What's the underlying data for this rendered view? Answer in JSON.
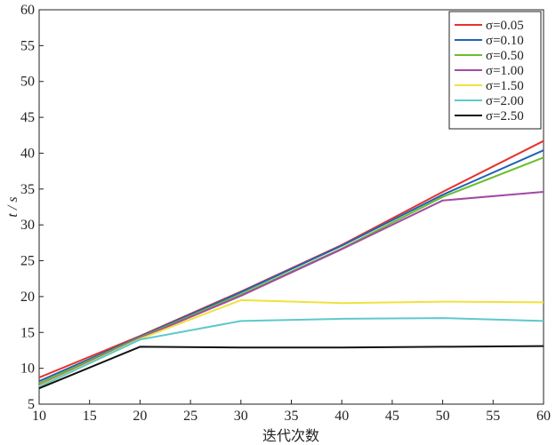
{
  "chart_data": {
    "type": "line",
    "title": "",
    "xlabel": "迭代次数",
    "ylabel": "t / s",
    "xlim": [
      10,
      60
    ],
    "ylim": [
      5,
      60
    ],
    "xticks": [
      10,
      15,
      20,
      25,
      30,
      35,
      40,
      45,
      50,
      55,
      60
    ],
    "yticks": [
      5,
      10,
      15,
      20,
      25,
      30,
      35,
      40,
      45,
      50,
      55,
      60
    ],
    "grid": false,
    "legend_position": "top-right",
    "x": [
      10,
      20,
      30,
      40,
      50,
      60
    ],
    "series": [
      {
        "name": "σ=0.05",
        "color": "#e8312f",
        "values": [
          8.7,
          14.5,
          20.7,
          27.2,
          34.6,
          41.7
        ]
      },
      {
        "name": "σ=0.10",
        "color": "#1f63b4",
        "values": [
          8.2,
          14.4,
          20.6,
          27.1,
          34.2,
          40.4
        ]
      },
      {
        "name": "σ=0.50",
        "color": "#6abd2f",
        "values": [
          7.9,
          14.3,
          20.3,
          26.7,
          33.9,
          39.4
        ]
      },
      {
        "name": "σ=1.00",
        "color": "#a349a4",
        "values": [
          7.6,
          14.2,
          20.1,
          26.6,
          33.4,
          34.6
        ]
      },
      {
        "name": "σ=1.50",
        "color": "#efe23b",
        "values": [
          7.5,
          14.1,
          19.5,
          19.1,
          19.3,
          19.2
        ]
      },
      {
        "name": "σ=2.00",
        "color": "#5ec8cc",
        "values": [
          7.4,
          14.0,
          16.6,
          16.9,
          17.0,
          16.6
        ]
      },
      {
        "name": "σ=2.50",
        "color": "#111111",
        "values": [
          7.2,
          13.0,
          12.9,
          12.9,
          13.0,
          13.1
        ]
      }
    ]
  }
}
